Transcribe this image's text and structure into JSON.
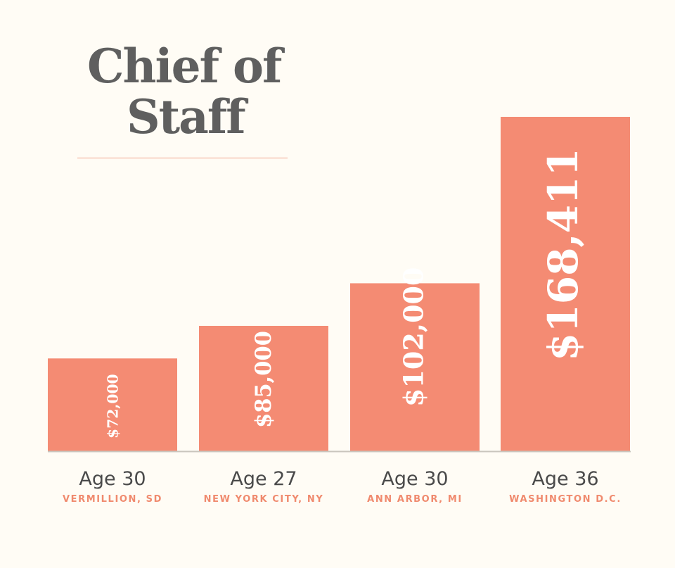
{
  "title_lines": [
    "Chief of",
    "Staff"
  ],
  "colors": {
    "bar": "#f48b73",
    "background": "#fffcf5",
    "title": "#5f5f5f",
    "city": "#f08a6e",
    "baseline": "#c9c5bd"
  },
  "chart_data": {
    "type": "bar",
    "categories": [
      "Age 30",
      "Age 27",
      "Age 30",
      "Age 36"
    ],
    "sublabels": [
      "VERMILLION, SD",
      "NEW YORK CITY, NY",
      "ANN ARBOR, MI",
      "WASHINGTON D.C."
    ],
    "values": [
      72000,
      85000,
      102000,
      168411
    ],
    "value_labels": [
      "$72,000",
      "$85,000",
      "$102,000",
      "$168,411"
    ],
    "title": "Chief of Staff",
    "grid": false,
    "legend": "none"
  }
}
